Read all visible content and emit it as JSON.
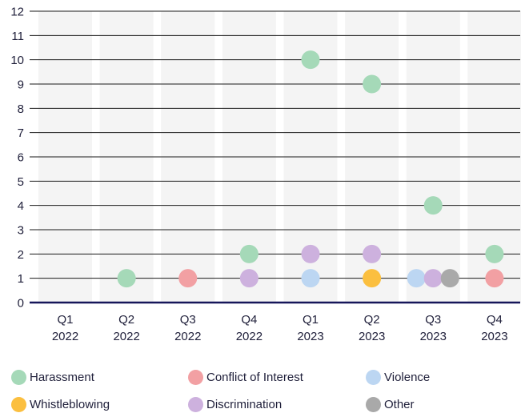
{
  "chart_data": {
    "type": "scatter",
    "categories": [
      {
        "quarter": "Q1",
        "year": "2022"
      },
      {
        "quarter": "Q2",
        "year": "2022"
      },
      {
        "quarter": "Q3",
        "year": "2022"
      },
      {
        "quarter": "Q4",
        "year": "2022"
      },
      {
        "quarter": "Q1",
        "year": "2023"
      },
      {
        "quarter": "Q2",
        "year": "2023"
      },
      {
        "quarter": "Q3",
        "year": "2023"
      },
      {
        "quarter": "Q4",
        "year": "2023"
      }
    ],
    "ylim": [
      0,
      12
    ],
    "yticks": [
      "0",
      "1",
      "2",
      "3",
      "4",
      "5",
      "6",
      "7",
      "8",
      "9",
      "10",
      "11",
      "12"
    ],
    "grid": true,
    "legend_position": "bottom",
    "series": [
      {
        "name": "Harassment",
        "color": "#a5d9b8",
        "points": [
          {
            "x": 1,
            "y": 1
          },
          {
            "x": 3,
            "y": 2
          },
          {
            "x": 4,
            "y": 10
          },
          {
            "x": 5,
            "y": 9
          },
          {
            "x": 6,
            "y": 4
          },
          {
            "x": 7,
            "y": 2
          }
        ]
      },
      {
        "name": "Conflict of Interest",
        "color": "#f2a0a3",
        "points": [
          {
            "x": 2,
            "y": 1
          },
          {
            "x": 7,
            "y": 1
          }
        ]
      },
      {
        "name": "Violence",
        "color": "#bcd6f2",
        "points": [
          {
            "x": 4,
            "y": 1
          },
          {
            "x": 6,
            "y": 1
          }
        ]
      },
      {
        "name": "Whistleblowing",
        "color": "#fbbf3f",
        "points": [
          {
            "x": 5,
            "y": 1
          }
        ]
      },
      {
        "name": "Discrimination",
        "color": "#cdb1de",
        "points": [
          {
            "x": 3,
            "y": 1
          },
          {
            "x": 4,
            "y": 2
          },
          {
            "x": 5,
            "y": 2
          },
          {
            "x": 6,
            "y": 1
          }
        ]
      },
      {
        "name": "Other",
        "color": "#a9a9a9",
        "points": [
          {
            "x": 6,
            "y": 1
          }
        ]
      }
    ]
  }
}
